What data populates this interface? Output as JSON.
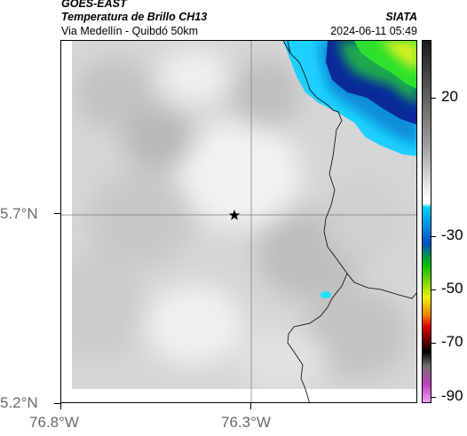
{
  "header": {
    "source": "GOES-EAST",
    "product": "Temperatura de Brillo CH13",
    "region": "Via Medellín - Quibdó 50km",
    "org": "SIATA",
    "datetime": "2024-06-11 05:49"
  },
  "axes": {
    "lat_labels": [
      "5.7°N",
      "5.2°N"
    ],
    "lon_labels": [
      "76.8°W",
      "76.3°W"
    ]
  },
  "colorbar": {
    "tick_labels": [
      "20",
      "-30",
      "-50",
      "-70",
      "-90"
    ],
    "colors": {
      "dark": "#1a1a1a",
      "gray": "#9a9a9a",
      "white": "#ffffff",
      "cyan": "#00d4ff",
      "blue": "#0050c8",
      "green": "#00c000",
      "yellow": "#f0f000",
      "red": "#e00000",
      "black": "#000000",
      "magenta": "#c040c0"
    }
  },
  "map": {
    "marker": "star-marker",
    "background_colors": {
      "light": "#e8e8e8",
      "mid": "#c4c4c4",
      "cloud_cyan": "#22e0ff",
      "cloud_blue": "#0a2a9a",
      "cloud_green": "#2ee02e",
      "cloud_yellow": "#e8f020"
    }
  }
}
